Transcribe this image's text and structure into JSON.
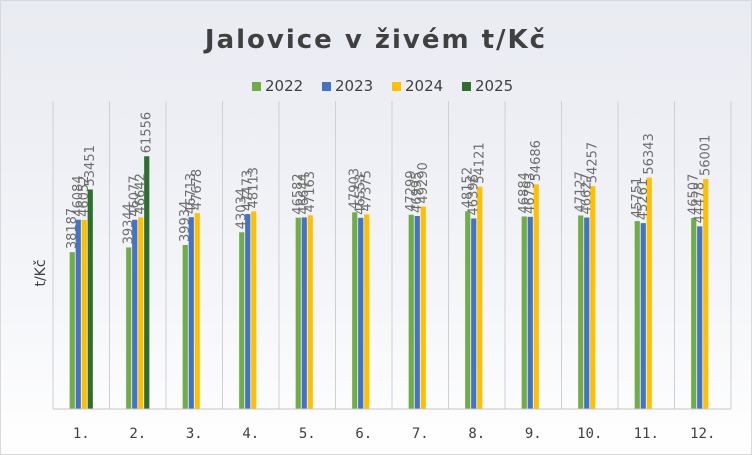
{
  "chart_data": {
    "type": "bar",
    "title": "Jalovice v živém t/Kč",
    "xlabel": "",
    "ylabel": "t/Kč",
    "ylim": [
      0,
      75000
    ],
    "grid": "vertical",
    "legend": "top",
    "categories": [
      "1.",
      "2.",
      "3.",
      "4.",
      "5.",
      "6.",
      "7.",
      "8.",
      "9.",
      "10.",
      "11.",
      "12."
    ],
    "series": [
      {
        "name": "2022",
        "color": "#70ad47",
        "values": [
          38187,
          39344,
          39934,
          43034,
          46582,
          47903,
          47299,
          48152,
          46884,
          47127,
          45751,
          46507
        ]
      },
      {
        "name": "2023",
        "color": "#4472c4",
        "values": [
          46084,
          46077,
          46713,
          47473,
          46644,
          46553,
          46995,
          46396,
          46793,
          46627,
          45261,
          44478
        ]
      },
      {
        "name": "2024",
        "color": "#ffc000",
        "values": [
          46052,
          46642,
          47678,
          48113,
          47163,
          47375,
          49290,
          54121,
          54686,
          54257,
          56343,
          56001
        ]
      },
      {
        "name": "2025",
        "color": "#2e6e2f",
        "values": [
          53451,
          61556,
          null,
          null,
          null,
          null,
          null,
          null,
          null,
          null,
          null,
          null
        ]
      }
    ]
  }
}
